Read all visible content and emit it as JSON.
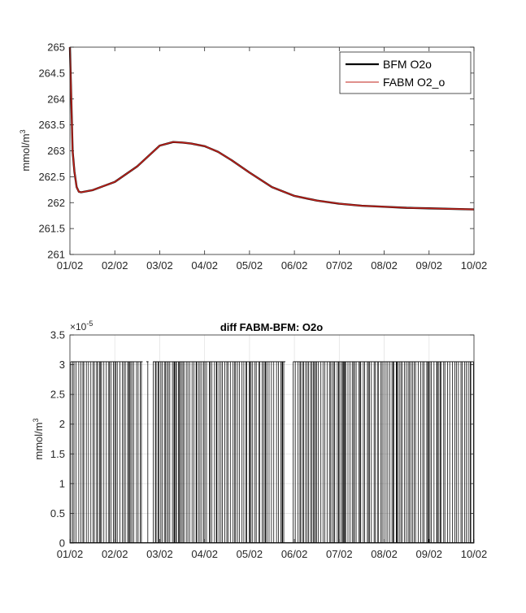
{
  "chart_data": [
    {
      "type": "line",
      "title": "",
      "ylabel": "mmol/m",
      "ylabel_sup": "3",
      "xlim": [
        0,
        9
      ],
      "ylim": [
        261,
        265
      ],
      "x_tick_labels": [
        "01/02",
        "02/02",
        "03/02",
        "04/02",
        "05/02",
        "06/02",
        "07/02",
        "08/02",
        "09/02",
        "10/02"
      ],
      "y_ticks": [
        261,
        261.5,
        262,
        262.5,
        263,
        263.5,
        264,
        264.5,
        265
      ],
      "y_tick_labels": [
        "261",
        "261.5",
        "262",
        "262.5",
        "263",
        "263.5",
        "264",
        "264.5",
        "265"
      ],
      "grid": false,
      "legend": "top-right",
      "series": [
        {
          "name": "BFM O2o",
          "color": "#000000",
          "x": [
            0,
            0.03,
            0.06,
            0.1,
            0.15,
            0.2,
            0.25,
            0.5,
            1.0,
            1.5,
            2.0,
            2.3,
            2.5,
            2.7,
            3.0,
            3.3,
            3.6,
            4.0,
            4.5,
            5.0,
            5.5,
            6.0,
            6.5,
            7.0,
            7.5,
            8.0,
            8.5,
            9.0
          ],
          "y": [
            265.0,
            264.0,
            263.0,
            262.6,
            262.3,
            262.21,
            262.2,
            262.24,
            262.4,
            262.7,
            263.1,
            263.17,
            263.16,
            263.14,
            263.09,
            262.98,
            262.82,
            262.58,
            262.3,
            262.13,
            262.04,
            261.98,
            261.94,
            261.92,
            261.9,
            261.89,
            261.88,
            261.87
          ]
        },
        {
          "name": "FABM O2_o",
          "color": "#c0211a",
          "x": [
            0,
            0.03,
            0.06,
            0.1,
            0.15,
            0.2,
            0.25,
            0.5,
            1.0,
            1.5,
            2.0,
            2.3,
            2.5,
            2.7,
            3.0,
            3.3,
            3.6,
            4.0,
            4.5,
            5.0,
            5.5,
            6.0,
            6.5,
            7.0,
            7.5,
            8.0,
            8.5,
            9.0
          ],
          "y": [
            265.0,
            264.0,
            263.0,
            262.6,
            262.3,
            262.21,
            262.2,
            262.24,
            262.4,
            262.7,
            263.1,
            263.17,
            263.16,
            263.14,
            263.09,
            262.98,
            262.82,
            262.58,
            262.3,
            262.13,
            262.04,
            261.98,
            261.94,
            261.92,
            261.9,
            261.89,
            261.88,
            261.87
          ]
        }
      ]
    },
    {
      "type": "line",
      "title": "diff FABM-BFM: O2o",
      "ylabel": "mmol/m",
      "ylabel_sup": "3",
      "exponent_label": "×10",
      "exponent_power": "-5",
      "xlim": [
        0,
        9
      ],
      "ylim": [
        0,
        3.5e-05
      ],
      "x_tick_labels": [
        "01/02",
        "02/02",
        "03/02",
        "04/02",
        "05/02",
        "06/02",
        "07/02",
        "08/02",
        "09/02",
        "10/02"
      ],
      "y_ticks": [
        0,
        5e-06,
        1e-05,
        1.5e-05,
        2e-05,
        2.5e-05,
        3e-05,
        3.5e-05
      ],
      "y_tick_labels": [
        "0",
        "0.5",
        "1",
        "1.5",
        "2",
        "2.5",
        "3",
        "3.5"
      ],
      "grid": true,
      "legend": "none",
      "series": [
        {
          "name": "",
          "color": "#000000",
          "level_high": 3.05e-05,
          "level_low": 0,
          "gaps": [
            [
              1.62,
              1.7
            ],
            [
              1.75,
              1.85
            ],
            [
              4.8,
              4.97
            ]
          ]
        }
      ]
    }
  ]
}
